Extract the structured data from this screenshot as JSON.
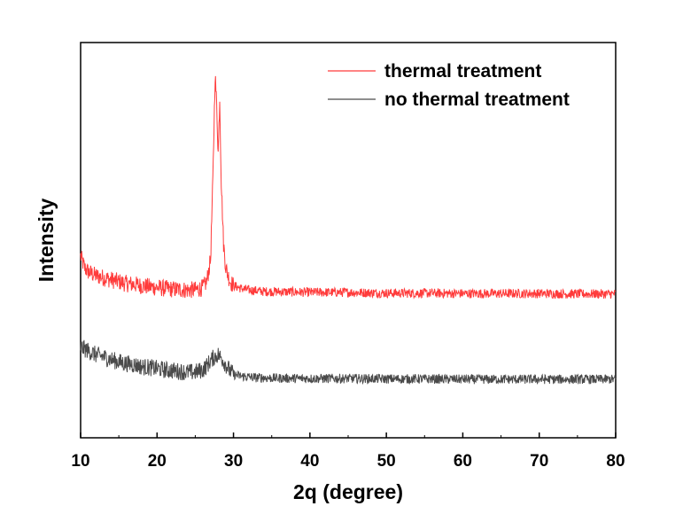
{
  "chart_data": {
    "type": "line",
    "title": "",
    "xlabel": "2q  (degree)",
    "ylabel": "Intensity",
    "xlim": [
      10,
      80
    ],
    "ylim": [
      0,
      10
    ],
    "x_ticks": [
      "10",
      "20",
      "30",
      "40",
      "50",
      "60",
      "70",
      "80"
    ],
    "y_tick_labels": "none",
    "grid": false,
    "legend_position": "top-right",
    "series": [
      {
        "name": "thermal treatment",
        "color": "#ff3b3b",
        "x": [
          10,
          10.5,
          11,
          12,
          13,
          14,
          15,
          16,
          17,
          18,
          19,
          20,
          21,
          22,
          23,
          24,
          25,
          26,
          26.5,
          27,
          27.3,
          27.6,
          27.8,
          28.0,
          28.2,
          28.4,
          28.7,
          29.0,
          29.3,
          29.6,
          30,
          31,
          32,
          33,
          34,
          35,
          40,
          45,
          50,
          55,
          60,
          65,
          70,
          75,
          80
        ],
        "y": [
          4.6,
          4.3,
          4.2,
          4.1,
          4.05,
          4.0,
          3.95,
          3.9,
          3.88,
          3.85,
          3.82,
          3.8,
          3.78,
          3.76,
          3.75,
          3.74,
          3.74,
          3.8,
          3.95,
          4.5,
          6.5,
          9.2,
          8.4,
          7.2,
          8.6,
          6.5,
          4.9,
          4.3,
          4.1,
          3.95,
          3.85,
          3.78,
          3.74,
          3.72,
          3.7,
          3.7,
          3.68,
          3.68,
          3.66,
          3.66,
          3.65,
          3.65,
          3.65,
          3.64,
          3.64
        ]
      },
      {
        "name": "no thermal treatment",
        "color": "#4a4a4a",
        "x": [
          10,
          10.5,
          11,
          12,
          13,
          14,
          15,
          16,
          17,
          18,
          19,
          20,
          21,
          22,
          23,
          24,
          25,
          26,
          26.5,
          27,
          27.5,
          28,
          28.5,
          29,
          29.5,
          30,
          31,
          32,
          33,
          34,
          35,
          40,
          45,
          50,
          55,
          60,
          65,
          70,
          75,
          80
        ],
        "y": [
          2.3,
          2.25,
          2.2,
          2.1,
          2.05,
          1.98,
          1.92,
          1.88,
          1.85,
          1.8,
          1.78,
          1.75,
          1.72,
          1.7,
          1.68,
          1.66,
          1.66,
          1.72,
          1.82,
          1.95,
          2.05,
          2.1,
          2.0,
          1.85,
          1.7,
          1.6,
          1.56,
          1.54,
          1.52,
          1.52,
          1.51,
          1.5,
          1.5,
          1.49,
          1.49,
          1.48,
          1.48,
          1.48,
          1.48,
          1.48
        ]
      }
    ]
  }
}
